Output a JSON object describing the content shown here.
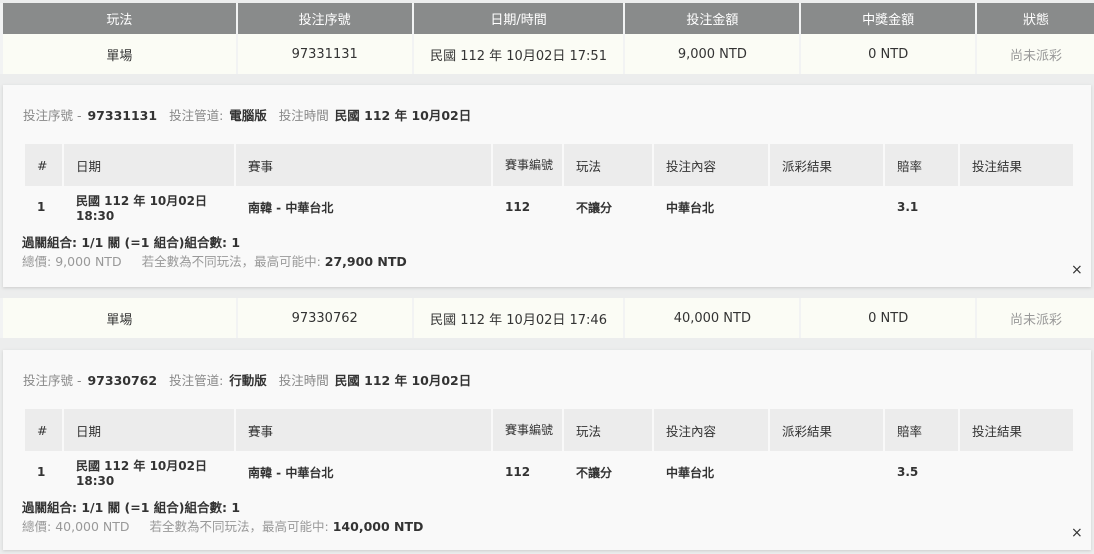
{
  "headers": [
    "玩法",
    "投注序號",
    "日期/時間",
    "投注金額",
    "中獎金額",
    "狀態"
  ],
  "inner_headers": [
    "#",
    "日期",
    "賽事",
    "賽事編號",
    "玩法",
    "投注內容",
    "派彩結果",
    "賠率",
    "投注結果"
  ],
  "info_labels": {
    "serial": "投注序號 -",
    "channel": "投注管道:",
    "time": "投注時間"
  },
  "bets": [
    {
      "type": "單場",
      "serial": "97331131",
      "datetime": "民國 112 年 10月02日 17:51",
      "amount": "9,000 NTD",
      "prize": "0 NTD",
      "status": "尚未派彩",
      "channel": "電腦版",
      "bet_date": "民國 112 年 10月02日",
      "row": {
        "no": "1",
        "date": "民國 112 年 10月02日",
        "time": "18:30",
        "match": "南韓 - 中華台北",
        "match_no": "112",
        "play": "不讓分",
        "content": "中華台北",
        "payout": "",
        "odds": "3.1",
        "result": ""
      },
      "combo": "過關組合: 1/1 關 (=1 組合)組合數: 1",
      "total_label": "總價:",
      "total": "9,000 NTD",
      "max_label": "若全數為不同玩法，最高可能中:",
      "max": "27,900 NTD"
    },
    {
      "type": "單場",
      "serial": "97330762",
      "datetime": "民國 112 年 10月02日 17:46",
      "amount": "40,000 NTD",
      "prize": "0 NTD",
      "status": "尚未派彩",
      "channel": "行動版",
      "bet_date": "民國 112 年 10月02日",
      "row": {
        "no": "1",
        "date": "民國 112 年 10月02日",
        "time": "18:30",
        "match": "南韓 - 中華台北",
        "match_no": "112",
        "play": "不讓分",
        "content": "中華台北",
        "payout": "",
        "odds": "3.5",
        "result": ""
      },
      "combo": "過關組合: 1/1 關 (=1 組合)組合數: 1",
      "total_label": "總價:",
      "total": "40,000 NTD",
      "max_label": "若全數為不同玩法，最高可能中:",
      "max": "140,000 NTD"
    }
  ],
  "close_icon": "×"
}
